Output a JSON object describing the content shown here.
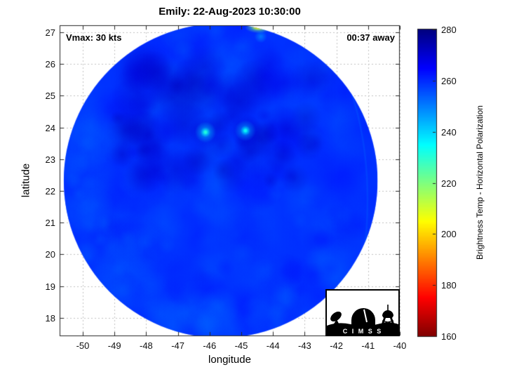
{
  "title": "Emily: 22-Aug-2023 10:30:00",
  "annotations": {
    "vmax": "Vmax: 30 kts",
    "time_to_pass": "00:37 away"
  },
  "axes": {
    "xlabel": "longitude",
    "ylabel": "latitude",
    "x_ticks": [
      "-50",
      "-49",
      "-48",
      "-47",
      "-46",
      "-45",
      "-44",
      "-43",
      "-42",
      "-41",
      "-40"
    ],
    "y_ticks": [
      "18",
      "19",
      "20",
      "21",
      "22",
      "23",
      "24",
      "25",
      "26",
      "27"
    ],
    "x_range": [
      -50.73,
      -40.0
    ],
    "y_range": [
      17.42,
      27.22
    ]
  },
  "colorbar": {
    "label": "Brightness Temp - Horizontal Polarization",
    "tick_labels": [
      "160",
      "180",
      "200",
      "220",
      "240",
      "260",
      "280"
    ],
    "tick_values": [
      160,
      180,
      200,
      220,
      240,
      260,
      280
    ],
    "value_range": [
      160,
      280
    ],
    "colormap": "jet (280 K = dark blue at top, 160 K = dark red at bottom)"
  },
  "logo": {
    "text": "C I M S S"
  },
  "chart_data": {
    "type": "heatmap",
    "title": "Emily: 22-Aug-2023 10:30:00",
    "xlabel": "longitude",
    "ylabel": "latitude",
    "xlim": [
      -50.73,
      -40.0
    ],
    "ylim": [
      17.42,
      27.22
    ],
    "grid": true,
    "colorbar_label": "Brightness Temp - Horizontal Polarization",
    "value_range_K": [
      160,
      280
    ],
    "vmax_kts": 30,
    "time_annotation": "00:37 away",
    "swath": {
      "center_lon": -45.65,
      "center_lat": 22.32,
      "radius_deg": 4.95,
      "background_temp_K": 259,
      "temp_noise_K": 15,
      "cold_core_band": "darker blue region (267-276 K) across storm center, lat 22.5-24.5",
      "warm_rim": "lighter blue (250-256 K) along lower and left rim of circular swath"
    },
    "features": [
      {
        "name": "bright convective cell",
        "lon": -46.13,
        "lat": 23.85,
        "temp_K": 230
      },
      {
        "name": "bright convective cell",
        "lon": -44.87,
        "lat": 23.9,
        "temp_K": 233
      },
      {
        "name": "cold streak at top edge of swath",
        "lon": -44.45,
        "lat": 27.15,
        "temp_K": 198
      }
    ]
  }
}
